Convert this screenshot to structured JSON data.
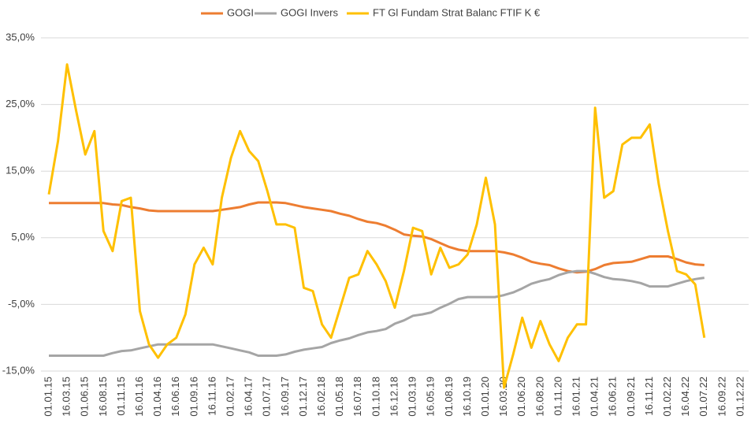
{
  "chart_data": {
    "type": "line",
    "categories": [
      "01.01.15",
      null,
      "16.03.15",
      null,
      "01.06.15",
      null,
      "16.08.15",
      null,
      "01.11.15",
      null,
      "16.01.16",
      null,
      "01.04.16",
      null,
      "16.06.16",
      null,
      "01.09.16",
      null,
      "16.11.16",
      null,
      "01.02.17",
      null,
      "16.04.17",
      null,
      "01.07.17",
      null,
      "16.09.17",
      null,
      "01.12.17",
      null,
      "16.02.18",
      null,
      "01.05.18",
      null,
      "16.07.18",
      null,
      "01.10.18",
      null,
      "16.12.18",
      null,
      "01.03.19",
      null,
      "16.05.19",
      null,
      "01.08.19",
      null,
      "16.10.19",
      null,
      "01.01.20",
      null,
      "16.03.20",
      null,
      "01.06.20",
      null,
      "16.08.20",
      null,
      "01.11.20",
      null,
      "16.01.21",
      null,
      "01.04.21",
      null,
      "16.06.21",
      null,
      "01.09.21",
      null,
      "16.11.21",
      null,
      "01.02.22",
      null,
      "16.04.22",
      null,
      "01.07.22",
      null,
      "16.09.22",
      null,
      "01.12.22"
    ],
    "series": [
      {
        "name": "GOGI",
        "color": "#ed7d31",
        "values": [
          10.2,
          10.2,
          10.2,
          10.2,
          10.2,
          10.2,
          10.2,
          10.0,
          9.9,
          9.6,
          9.4,
          9.1,
          9,
          9,
          9,
          9,
          9,
          9,
          9,
          9.2,
          9.4,
          9.6,
          10,
          10.3,
          10.3,
          10.3,
          10.2,
          9.9,
          9.6,
          9.4,
          9.2,
          9.0,
          8.6,
          8.3,
          7.8,
          7.4,
          7.2,
          6.8,
          6.2,
          5.5,
          5.3,
          5.2,
          4.8,
          4.2,
          3.6,
          3.2,
          3,
          3,
          3,
          3,
          2.8,
          2.5,
          2,
          1.4,
          1.1,
          0.9,
          0.4,
          0,
          -0.2,
          -0.1,
          0.3,
          0.9,
          1.2,
          1.3,
          1.4,
          1.8,
          2.2,
          2.2,
          2.2,
          1.8,
          1.3,
          1.0,
          0.9,
          null,
          null,
          null,
          null
        ]
      },
      {
        "name": "GOGI Invers",
        "color": "#a5a5a5",
        "values": [
          -12.7,
          -12.7,
          -12.7,
          -12.7,
          -12.7,
          -12.7,
          -12.7,
          -12.3,
          -12,
          -11.9,
          -11.6,
          -11.3,
          -11,
          -11,
          -11,
          -11,
          -11,
          -11,
          -11,
          -11.3,
          -11.6,
          -11.9,
          -12.2,
          -12.7,
          -12.7,
          -12.7,
          -12.5,
          -12.1,
          -11.8,
          -11.6,
          -11.4,
          -10.8,
          -10.4,
          -10.1,
          -9.6,
          -9.2,
          -9.0,
          -8.7,
          -7.9,
          -7.4,
          -6.7,
          -6.5,
          -6.2,
          -5.5,
          -4.9,
          -4.2,
          -3.9,
          -3.9,
          -3.9,
          -3.9,
          -3.6,
          -3.2,
          -2.6,
          -1.9,
          -1.5,
          -1.2,
          -0.6,
          -0.2,
          0,
          0,
          -0.4,
          -0.9,
          -1.2,
          -1.3,
          -1.5,
          -1.8,
          -2.3,
          -2.3,
          -2.3,
          -1.9,
          -1.5,
          -1.2,
          -1.0,
          null,
          null,
          null,
          null
        ]
      },
      {
        "name": "FT Gl Fundam Strat Balanc FTIF K €",
        "color": "#ffc000",
        "values": [
          11.5,
          19.5,
          31,
          24,
          17.5,
          21,
          6,
          3,
          10.5,
          11,
          -6,
          -11,
          -13,
          -11,
          -10,
          -6.5,
          1,
          3.5,
          1,
          11,
          17,
          21,
          18,
          16.5,
          12,
          7,
          7,
          6.5,
          -2.5,
          -3,
          -8,
          -10,
          -5.5,
          -1,
          -0.5,
          3,
          1,
          -1.5,
          -5.5,
          0,
          6.5,
          6,
          -0.5,
          3.5,
          0.5,
          1,
          2.5,
          7,
          14,
          7,
          -17.5,
          -12.5,
          -7,
          -11.5,
          -7.5,
          -11,
          -13.5,
          -10,
          -8,
          -8,
          24.5,
          11,
          12,
          19,
          20,
          20,
          22,
          13,
          6,
          0,
          -0.5,
          -2,
          -10,
          null,
          null,
          null,
          null
        ]
      }
    ],
    "ylim": [
      -15,
      35
    ],
    "yticks": [
      {
        "value": -15,
        "label": "-15,0%"
      },
      {
        "value": -5,
        "label": "-5,0%"
      },
      {
        "value": 5,
        "label": "5,0%"
      },
      {
        "value": 15,
        "label": "15,0%"
      },
      {
        "value": 25,
        "label": "25,0%"
      },
      {
        "value": 35,
        "label": "35,0%"
      }
    ],
    "grid": true,
    "legend": "top"
  }
}
